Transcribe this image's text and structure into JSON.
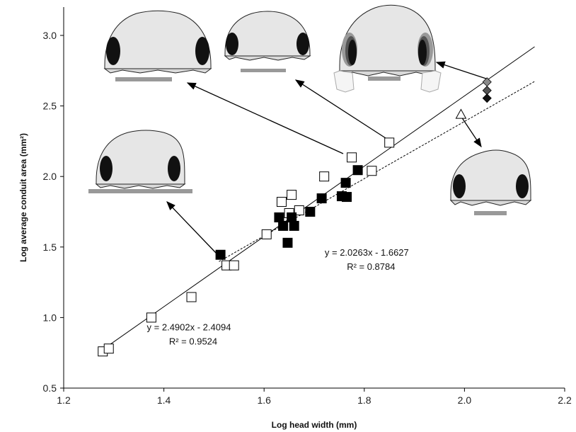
{
  "chart_data": {
    "type": "scatter",
    "title": "",
    "xlabel": "Log head width (mm)",
    "ylabel": "Log average conduit area (mm²)",
    "xlim": [
      1.2,
      2.2
    ],
    "ylim": [
      0.5,
      3.2
    ],
    "xticks": [
      "1.2",
      "1.4",
      "1.6",
      "1.8",
      "2.0",
      "2.2"
    ],
    "yticks": [
      "0.5",
      "1.0",
      "1.5",
      "2.0",
      "2.5",
      "3.0"
    ],
    "grid": false,
    "legend": "none",
    "series": [
      {
        "marker": "open-square",
        "color": "#000000",
        "points": [
          {
            "x": 1.278,
            "y": 0.76
          },
          {
            "x": 1.29,
            "y": 0.78
          },
          {
            "x": 1.375,
            "y": 1.0
          },
          {
            "x": 1.455,
            "y": 1.145
          },
          {
            "x": 1.525,
            "y": 1.37
          },
          {
            "x": 1.54,
            "y": 1.37
          },
          {
            "x": 1.605,
            "y": 1.59
          },
          {
            "x": 1.635,
            "y": 1.82
          },
          {
            "x": 1.65,
            "y": 1.74
          },
          {
            "x": 1.655,
            "y": 1.87
          },
          {
            "x": 1.67,
            "y": 1.76
          },
          {
            "x": 1.72,
            "y": 2.0
          },
          {
            "x": 1.775,
            "y": 2.135
          },
          {
            "x": 1.815,
            "y": 2.04
          },
          {
            "x": 1.85,
            "y": 2.24
          }
        ]
      },
      {
        "marker": "filled-square",
        "color": "#000000",
        "points": [
          {
            "x": 1.513,
            "y": 1.445
          },
          {
            "x": 1.63,
            "y": 1.71
          },
          {
            "x": 1.638,
            "y": 1.65
          },
          {
            "x": 1.647,
            "y": 1.53
          },
          {
            "x": 1.655,
            "y": 1.71
          },
          {
            "x": 1.66,
            "y": 1.65
          },
          {
            "x": 1.692,
            "y": 1.75
          },
          {
            "x": 1.715,
            "y": 1.845
          },
          {
            "x": 1.755,
            "y": 1.86
          },
          {
            "x": 1.763,
            "y": 1.955
          },
          {
            "x": 1.765,
            "y": 1.855
          },
          {
            "x": 1.787,
            "y": 2.045
          }
        ]
      },
      {
        "marker": "diamond",
        "colors": [
          "#8a8a8a",
          "#555555",
          "#111111"
        ],
        "points": [
          {
            "x": 2.045,
            "y": 2.67
          },
          {
            "x": 2.045,
            "y": 2.61
          },
          {
            "x": 2.045,
            "y": 2.555
          }
        ]
      },
      {
        "marker": "open-triangle",
        "color": "#000000",
        "points": [
          {
            "x": 1.993,
            "y": 2.44
          }
        ]
      }
    ],
    "trendlines": [
      {
        "style": "solid",
        "slope": 2.4902,
        "intercept": -2.4094,
        "x_range": [
          1.27,
          2.14
        ]
      },
      {
        "style": "dashed",
        "slope": 2.0263,
        "intercept": -1.6627,
        "x_range": [
          1.51,
          2.14
        ]
      }
    ],
    "annotations": [
      {
        "eq": "y = 2.0263x - 1.6627",
        "r2": "R² = 0.8784",
        "x": 1.805,
        "y": 1.44
      },
      {
        "eq": "y = 2.4902x - 2.4094",
        "r2": "R² = 0.9524",
        "x": 1.45,
        "y": 0.91
      }
    ],
    "skull_insets": [
      {
        "name": "skull-left-mid",
        "bar_color": "#999999"
      },
      {
        "name": "skull-top-left",
        "bar_color": "#999999"
      },
      {
        "name": "skull-top-mid",
        "bar_color": "#999999"
      },
      {
        "name": "skull-top-right",
        "bar_color": "#999999"
      },
      {
        "name": "skull-right",
        "bar_color": "#999999"
      }
    ]
  }
}
